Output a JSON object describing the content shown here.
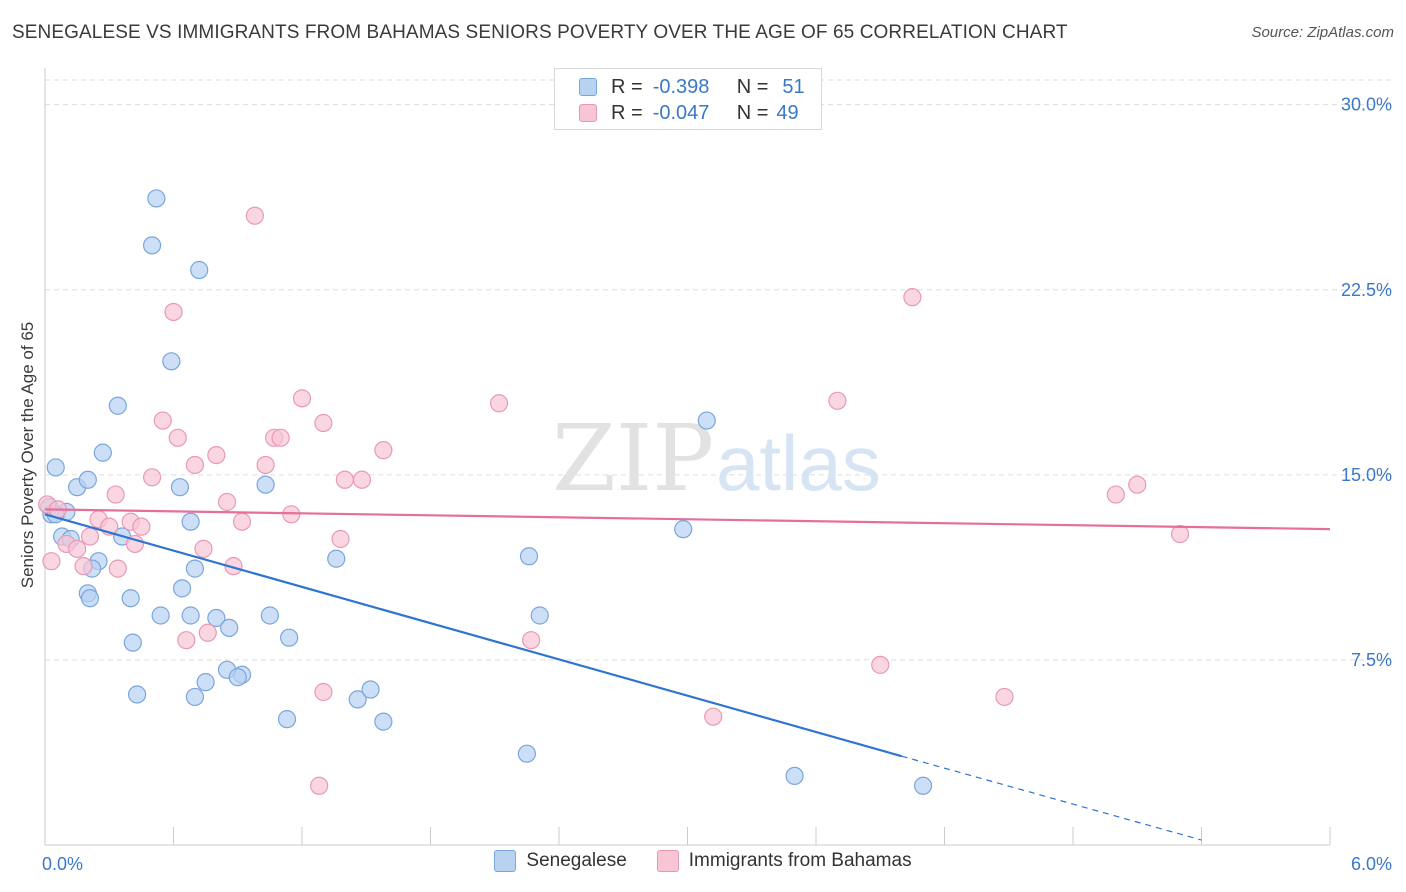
{
  "header": {
    "title": "SENEGALESE VS IMMIGRANTS FROM BAHAMAS SENIORS POVERTY OVER THE AGE OF 65 CORRELATION CHART",
    "source": "Source: ZipAtlas.com"
  },
  "watermark": {
    "zip": "ZIP",
    "atlas": "atlas"
  },
  "stats": {
    "r_label": "R =",
    "n_label": "N =",
    "rows": [
      {
        "r": "-0.398",
        "n": "51"
      },
      {
        "r": "-0.047",
        "n": "49"
      }
    ]
  },
  "colors": {
    "blue_fill": "#b8d2f2",
    "blue_stroke": "#7aa6dd",
    "blue_line": "#2f74d0",
    "pink_fill": "#f8c5d5",
    "pink_stroke": "#e89ab4",
    "pink_line": "#e4709a",
    "grid": "#dddddd",
    "axis_text": "#3a78c9"
  },
  "chart_data": {
    "type": "scatter",
    "title": "SENEGALESE VS IMMIGRANTS FROM BAHAMAS SENIORS POVERTY OVER THE AGE OF 65 CORRELATION CHART",
    "xlabel": "",
    "ylabel": "Seniors Poverty Over the Age of 65",
    "xlim": [
      0,
      6
    ],
    "ylim": [
      0,
      31
    ],
    "x_tick_labels": [
      "0.0%",
      "6.0%"
    ],
    "y_ticks": [
      7.5,
      15.0,
      22.5,
      30.0
    ],
    "y_tick_labels": [
      "7.5%",
      "15.0%",
      "22.5%",
      "30.0%"
    ],
    "grid": true,
    "legend_position": "bottom",
    "series": [
      {
        "name": "Senegalese",
        "color": "#b8d2f2",
        "points": [
          [
            0.05,
            15.3
          ],
          [
            0.02,
            13.7
          ],
          [
            0.03,
            13.4
          ],
          [
            0.1,
            13.5
          ],
          [
            0.08,
            12.5
          ],
          [
            0.12,
            12.4
          ],
          [
            0.15,
            14.5
          ],
          [
            0.2,
            14.8
          ],
          [
            0.25,
            11.5
          ],
          [
            0.22,
            11.2
          ],
          [
            0.2,
            10.2
          ],
          [
            0.21,
            10.0
          ],
          [
            0.27,
            15.9
          ],
          [
            0.36,
            12.5
          ],
          [
            0.4,
            10.0
          ],
          [
            0.41,
            8.2
          ],
          [
            0.43,
            6.1
          ],
          [
            0.54,
            9.3
          ],
          [
            0.64,
            10.4
          ],
          [
            0.68,
            9.3
          ],
          [
            0.7,
            6.0
          ],
          [
            0.75,
            6.6
          ],
          [
            0.8,
            9.2
          ],
          [
            0.86,
            8.8
          ],
          [
            0.92,
            6.9
          ],
          [
            0.34,
            17.8
          ],
          [
            0.5,
            24.3
          ],
          [
            0.52,
            26.2
          ],
          [
            0.59,
            19.6
          ],
          [
            0.63,
            14.5
          ],
          [
            0.72,
            23.3
          ],
          [
            0.68,
            13.1
          ],
          [
            0.7,
            11.2
          ],
          [
            0.85,
            7.1
          ],
          [
            0.9,
            6.8
          ],
          [
            1.03,
            14.6
          ],
          [
            1.05,
            9.3
          ],
          [
            1.13,
            5.1
          ],
          [
            1.14,
            8.4
          ],
          [
            1.36,
            11.6
          ],
          [
            1.46,
            5.9
          ],
          [
            1.52,
            6.3
          ],
          [
            1.58,
            5.0
          ],
          [
            2.25,
            3.7
          ],
          [
            2.26,
            11.7
          ],
          [
            2.31,
            9.3
          ],
          [
            2.98,
            12.8
          ],
          [
            3.09,
            17.2
          ],
          [
            3.5,
            2.8
          ],
          [
            4.1,
            2.4
          ],
          [
            0.05,
            13.4
          ]
        ]
      },
      {
        "name": "Immigrants from Bahamas",
        "color": "#f8c5d5",
        "points": [
          [
            0.01,
            13.8
          ],
          [
            0.03,
            11.5
          ],
          [
            0.06,
            13.6
          ],
          [
            0.1,
            12.2
          ],
          [
            0.15,
            12.0
          ],
          [
            0.18,
            11.3
          ],
          [
            0.21,
            12.5
          ],
          [
            0.25,
            13.2
          ],
          [
            0.3,
            12.9
          ],
          [
            0.33,
            14.2
          ],
          [
            0.34,
            11.2
          ],
          [
            0.4,
            13.1
          ],
          [
            0.42,
            12.2
          ],
          [
            0.45,
            12.9
          ],
          [
            0.5,
            14.9
          ],
          [
            0.55,
            17.2
          ],
          [
            0.6,
            21.6
          ],
          [
            0.62,
            16.5
          ],
          [
            0.66,
            8.3
          ],
          [
            0.7,
            15.4
          ],
          [
            0.74,
            12.0
          ],
          [
            0.76,
            8.6
          ],
          [
            0.8,
            15.8
          ],
          [
            0.85,
            13.9
          ],
          [
            0.88,
            11.3
          ],
          [
            0.98,
            25.5
          ],
          [
            1.03,
            15.4
          ],
          [
            1.07,
            16.5
          ],
          [
            1.1,
            16.5
          ],
          [
            1.15,
            13.4
          ],
          [
            1.2,
            18.1
          ],
          [
            1.3,
            17.1
          ],
          [
            1.38,
            12.4
          ],
          [
            1.4,
            14.8
          ],
          [
            1.48,
            14.8
          ],
          [
            1.58,
            16.0
          ],
          [
            1.3,
            6.2
          ],
          [
            1.28,
            2.4
          ],
          [
            2.12,
            17.9
          ],
          [
            2.27,
            8.3
          ],
          [
            3.12,
            5.2
          ],
          [
            3.7,
            18.0
          ],
          [
            3.9,
            7.3
          ],
          [
            4.05,
            22.2
          ],
          [
            4.48,
            6.0
          ],
          [
            5.0,
            14.2
          ],
          [
            5.1,
            14.6
          ],
          [
            5.3,
            12.6
          ],
          [
            0.92,
            13.1
          ]
        ]
      }
    ],
    "trend_lines": [
      {
        "series": "Senegalese",
        "x": [
          0.0,
          4.0
        ],
        "y": [
          13.4,
          3.6
        ],
        "dashed_to": [
          5.4,
          0.2
        ]
      },
      {
        "series": "Immigrants from Bahamas",
        "x": [
          0.0,
          6.0
        ],
        "y": [
          13.6,
          12.8
        ]
      }
    ]
  }
}
